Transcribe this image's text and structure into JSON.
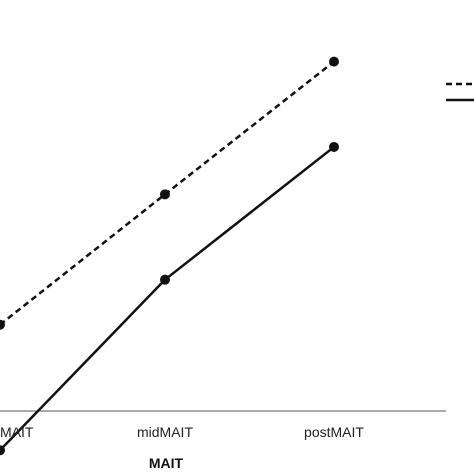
{
  "chart_data": {
    "type": "line",
    "title": "",
    "xlabel": "MAIT",
    "ylabel": "",
    "categories": [
      "preMAIT",
      "midMAIT",
      "postMAIT"
    ],
    "visible_tick_labels": [
      "MAIT",
      "midMAIT",
      "postMAIT"
    ],
    "series": [
      {
        "style": "dashed",
        "color": "#111111",
        "values": [
          31.5,
          59,
          87
        ]
      },
      {
        "style": "solid",
        "color": "#111111",
        "values": [
          5,
          41,
          69
        ]
      }
    ],
    "ylim": [
      0,
      100
    ],
    "grid": false,
    "legend": {
      "placement": "top-right",
      "entries": 2
    }
  }
}
